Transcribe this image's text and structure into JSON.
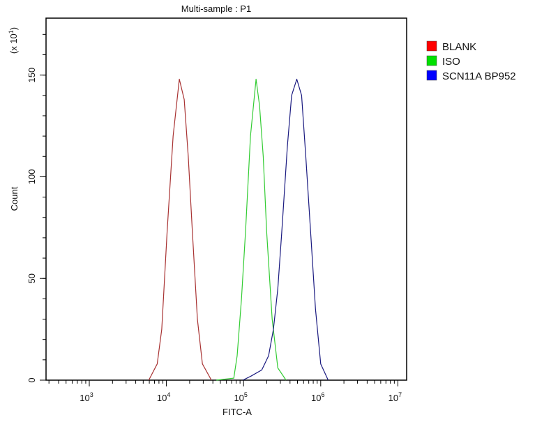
{
  "chart_data": {
    "type": "line",
    "title": "Multi-sample : P1",
    "xlabel": "FITC-A",
    "ylabel": "Count",
    "y_multiplier_label": "(x 10",
    "y_multiplier_exp": "1",
    "x_scale": "log",
    "xlim": [
      275,
      13000000
    ],
    "ylim": [
      0,
      178
    ],
    "x_ticks": [
      {
        "base": "10",
        "exp": "3",
        "value": 1000
      },
      {
        "base": "10",
        "exp": "4",
        "value": 10000
      },
      {
        "base": "10",
        "exp": "5",
        "value": 100000
      },
      {
        "base": "10",
        "exp": "6",
        "value": 1000000
      },
      {
        "base": "10",
        "exp": "7",
        "value": 10000000
      }
    ],
    "y_ticks": [
      "0",
      "50",
      "100",
      "150"
    ],
    "y_tick_values": [
      0,
      50,
      100,
      150
    ],
    "y_minor_step": 10,
    "grid": false,
    "legend_position": "right",
    "series": [
      {
        "name": "BLANK",
        "color": "#ff0000",
        "line_color": "#a83232",
        "x": [
          5900,
          7600,
          8700,
          10200,
          12200,
          14700,
          17000,
          19200,
          21700,
          25200,
          29300,
          38300
        ],
        "y": [
          0,
          8,
          25,
          73,
          120,
          148,
          138,
          110,
          73,
          30,
          8,
          0
        ]
      },
      {
        "name": "ISO",
        "color": "#00e000",
        "line_color": "#33cc33",
        "x": [
          44400,
          74700,
          82600,
          94000,
          106000,
          123000,
          145000,
          161000,
          180000,
          199000,
          235000,
          278000,
          355000
        ],
        "y": [
          0,
          1,
          12,
          40,
          73,
          120,
          148,
          135,
          110,
          73,
          30,
          6,
          0
        ]
      },
      {
        "name": "SCN11A BP952",
        "color": "#0000ff",
        "line_color": "#1a1a80",
        "x": [
          98000,
          125000,
          172000,
          211000,
          244000,
          278000,
          313000,
          370000,
          420000,
          490000,
          565000,
          640000,
          740000,
          855000,
          1000000,
          1250000
        ],
        "y": [
          0,
          2,
          5,
          12,
          25,
          45,
          73,
          115,
          140,
          148,
          140,
          110,
          73,
          35,
          8,
          0
        ]
      }
    ]
  }
}
